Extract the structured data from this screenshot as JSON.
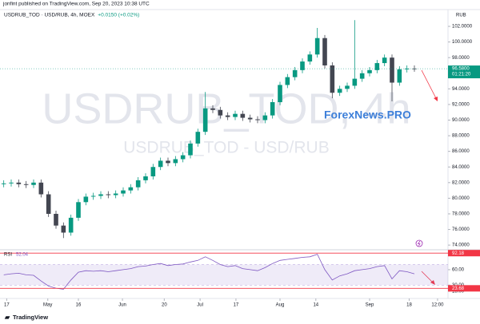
{
  "header": "jonfint published on TradingView.com, Sep 20, 2023 10:38 UTC",
  "footer": "TradingView",
  "watermark": "ForexNews.PRO",
  "chart_data": [
    {
      "type": "candlestick",
      "title": "USDRUB_TOD · USD/RUB, 4h, MOEX",
      "change": "+0.0150 (+0.02%)",
      "watermark_lines": [
        "USDRUB_TOD, 4h",
        "USDRUB_TOD - USD/RUB"
      ],
      "currency": "RUB",
      "last_price": {
        "value": 96.58,
        "label": "96.5800"
      },
      "countdown": "01:21:20",
      "open": [
        81.8,
        81.9,
        82.0,
        81.8,
        81.7,
        82.0,
        80.5,
        78.0,
        76.5,
        75.6,
        77.5,
        79.5,
        80.2,
        80.3,
        80.5,
        80.4,
        80.6,
        81.0,
        81.4,
        82.3,
        82.8,
        84.0,
        84.8,
        84.5,
        85.0,
        85.5,
        87.0,
        88.5,
        91.5,
        91.3,
        90.6,
        90.4,
        90.8,
        90.3,
        90.1,
        90.0,
        90.6,
        92.3,
        94.5,
        95.5,
        96.4,
        97.5,
        98.4,
        100.5,
        97.0,
        93.5,
        94.0,
        94.4,
        95.3,
        96.0,
        96.4,
        97.3,
        98.0,
        94.8,
        96.5,
        96.6
      ],
      "high": [
        82.3,
        82.4,
        82.4,
        82.2,
        82.4,
        82.4,
        80.9,
        78.4,
        76.9,
        77.9,
        79.9,
        80.6,
        80.7,
        80.9,
        80.9,
        81.0,
        81.4,
        81.8,
        82.7,
        83.2,
        84.4,
        85.2,
        85.2,
        85.4,
        85.9,
        87.4,
        88.9,
        93.6,
        91.9,
        91.7,
        91.0,
        91.2,
        91.2,
        90.7,
        90.5,
        91.0,
        92.7,
        94.9,
        95.9,
        96.8,
        97.9,
        98.8,
        101.8,
        100.9,
        97.4,
        94.4,
        94.8,
        102.8,
        96.4,
        96.8,
        97.7,
        98.4,
        98.4,
        96.9,
        97.0,
        97.0
      ],
      "low": [
        81.4,
        81.5,
        81.4,
        81.3,
        81.3,
        80.1,
        77.6,
        76.1,
        74.9,
        75.2,
        77.1,
        79.1,
        79.8,
        79.9,
        80.0,
        80.0,
        80.2,
        80.6,
        81.0,
        81.9,
        82.4,
        83.6,
        84.1,
        84.1,
        84.6,
        85.1,
        86.6,
        88.1,
        90.9,
        90.2,
        90.0,
        90.0,
        89.9,
        89.7,
        89.6,
        89.6,
        90.2,
        91.9,
        94.1,
        95.1,
        96.0,
        97.1,
        98.0,
        96.6,
        92.8,
        93.1,
        93.6,
        94.0,
        94.9,
        95.6,
        96.0,
        96.9,
        92.4,
        94.4,
        96.1,
        96.2
      ],
      "close": [
        81.9,
        82.0,
        81.8,
        81.7,
        82.0,
        80.5,
        78.0,
        76.5,
        75.6,
        77.5,
        79.5,
        80.2,
        80.3,
        80.5,
        80.4,
        80.6,
        81.0,
        81.4,
        82.3,
        82.8,
        84.0,
        84.8,
        84.5,
        85.0,
        85.5,
        87.0,
        88.5,
        91.5,
        91.3,
        90.6,
        90.4,
        90.8,
        90.3,
        90.1,
        90.0,
        90.6,
        92.3,
        94.5,
        95.5,
        96.4,
        97.5,
        98.4,
        100.5,
        97.0,
        93.5,
        94.0,
        94.4,
        95.3,
        96.0,
        96.4,
        97.3,
        98.0,
        94.8,
        96.5,
        96.6,
        96.58
      ],
      "up_color": "#089981",
      "down_color": "#434651",
      "xlim": [
        -0.5,
        59.5
      ],
      "ylim": [
        73.4,
        104.15
      ],
      "yticks": [
        {
          "value": 74,
          "label": "74.0000"
        },
        {
          "value": 76,
          "label": "76.0000"
        },
        {
          "value": 78,
          "label": "78.0000"
        },
        {
          "value": 80,
          "label": "80.0000"
        },
        {
          "value": 82,
          "label": "82.0000"
        },
        {
          "value": 84,
          "label": "84.0000"
        },
        {
          "value": 86,
          "label": "86.0000"
        },
        {
          "value": 88,
          "label": "88.0000"
        },
        {
          "value": 90,
          "label": "90.0000"
        },
        {
          "value": 92,
          "label": "92.0000"
        },
        {
          "value": 94,
          "label": "94.0000"
        },
        {
          "value": 98,
          "label": "98.0000"
        },
        {
          "value": 100,
          "label": "100.0000"
        },
        {
          "value": 102,
          "label": "102.0000"
        }
      ]
    },
    {
      "type": "line",
      "title": "RSI",
      "last_value": 52.04,
      "values": [
        50,
        52,
        53,
        50,
        49,
        38,
        28,
        24,
        22,
        40,
        55,
        58,
        57,
        58,
        56,
        58,
        60,
        62,
        66,
        67,
        70,
        72,
        68,
        70,
        71,
        75,
        78,
        85,
        78,
        70,
        66,
        68,
        62,
        60,
        58,
        64,
        72,
        78,
        80,
        82,
        84,
        85,
        90,
        60,
        40,
        48,
        52,
        58,
        60,
        62,
        66,
        68,
        42,
        58,
        56,
        52
      ],
      "color": "#7e57c2",
      "levels": [
        92.18,
        23.68
      ],
      "level_color": "#f23645",
      "band": [
        30,
        70
      ],
      "xlim": [
        -0.5,
        59.5
      ],
      "ylim": [
        4,
        98.7
      ],
      "yticks": [
        {
          "value": 60,
          "label": "60.00"
        },
        {
          "value": 30,
          "label": "30.00"
        },
        {
          "value": 18,
          "label": "18.00"
        }
      ],
      "xticks": [
        {
          "value": 0.4,
          "label": "17"
        },
        {
          "value": 5.9,
          "label": "May"
        },
        {
          "value": 10,
          "label": "16"
        },
        {
          "value": 15.9,
          "label": "Jun"
        },
        {
          "value": 21.5,
          "label": "20"
        },
        {
          "value": 26.3,
          "label": "Jul"
        },
        {
          "value": 31.1,
          "label": "17"
        },
        {
          "value": 37,
          "label": "Aug"
        },
        {
          "value": 41.8,
          "label": "14"
        },
        {
          "value": 49,
          "label": "Sep"
        },
        {
          "value": 54.3,
          "label": "18"
        },
        {
          "value": 58.1,
          "label": "12:00"
        }
      ]
    }
  ]
}
